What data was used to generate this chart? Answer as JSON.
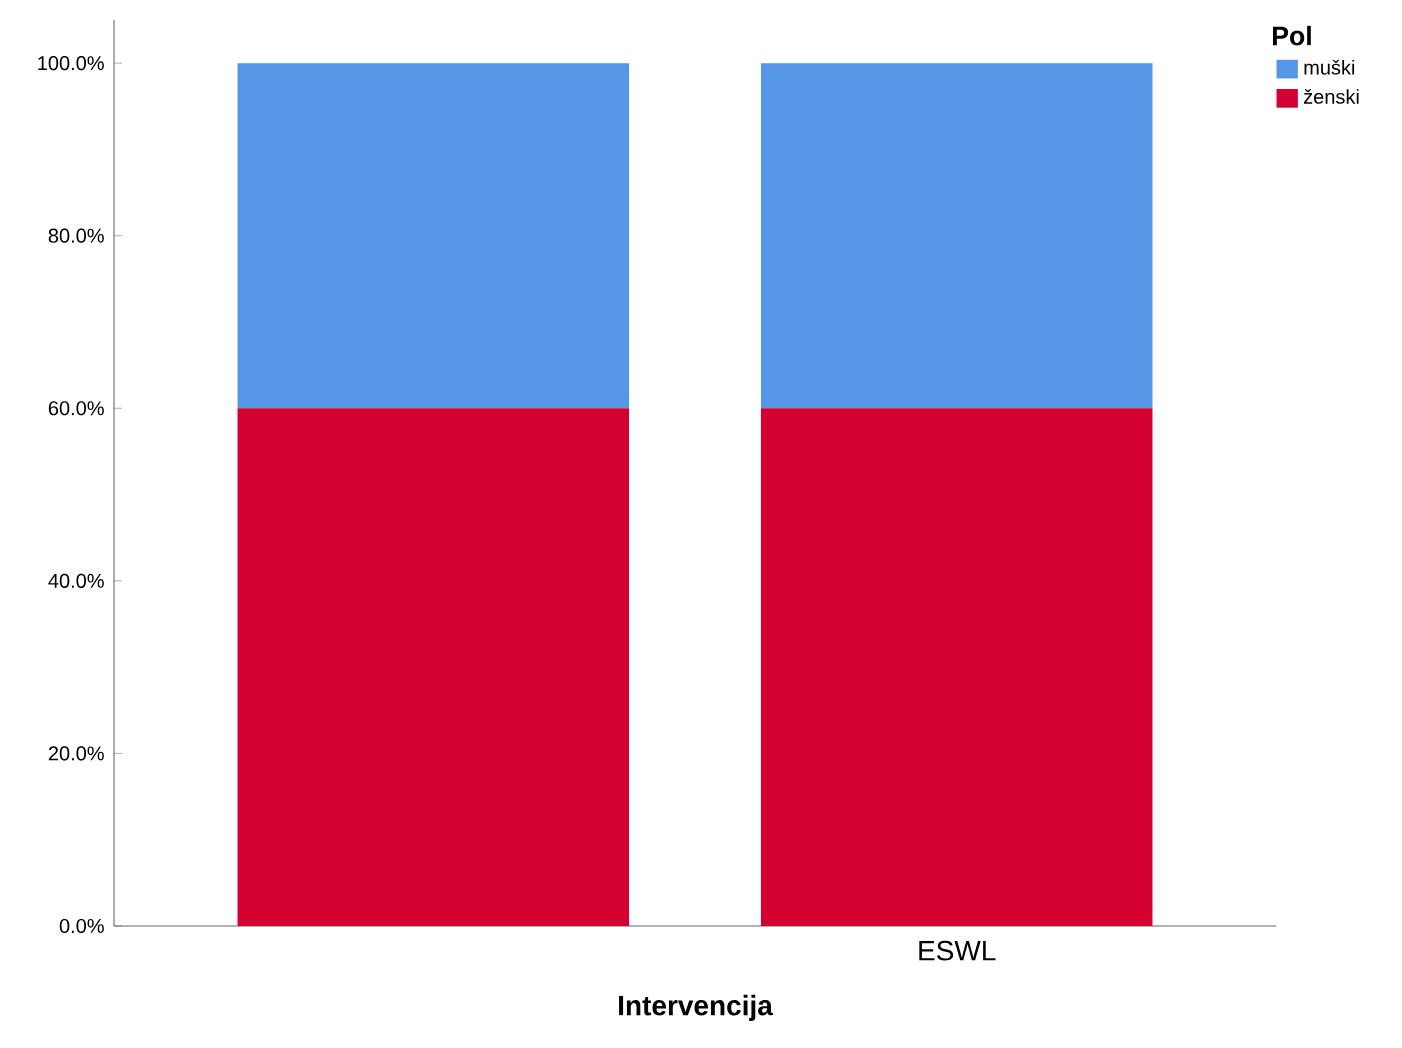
{
  "chart_data": {
    "type": "bar",
    "stacked": true,
    "xlabel": "Intervencija",
    "legend_title": "Pol",
    "legend": "top right",
    "categories": [
      null,
      "ESWL"
    ],
    "series": [
      {
        "name": "ženski",
        "color": "#d50032",
        "values": [
          60,
          60
        ]
      },
      {
        "name": "muški",
        "color": "#5596e6",
        "values": [
          40,
          40
        ]
      }
    ],
    "ylim": [
      0,
      105
    ],
    "yticks": [
      {
        "value": 0,
        "label": "0.0%"
      },
      {
        "value": 20,
        "label": "20.0%"
      },
      {
        "value": 40,
        "label": "40.0%"
      },
      {
        "value": 60,
        "label": "60.0%"
      },
      {
        "value": 80,
        "label": "80.0%"
      },
      {
        "value": 100,
        "label": "100.0%"
      }
    ],
    "grid": false
  }
}
